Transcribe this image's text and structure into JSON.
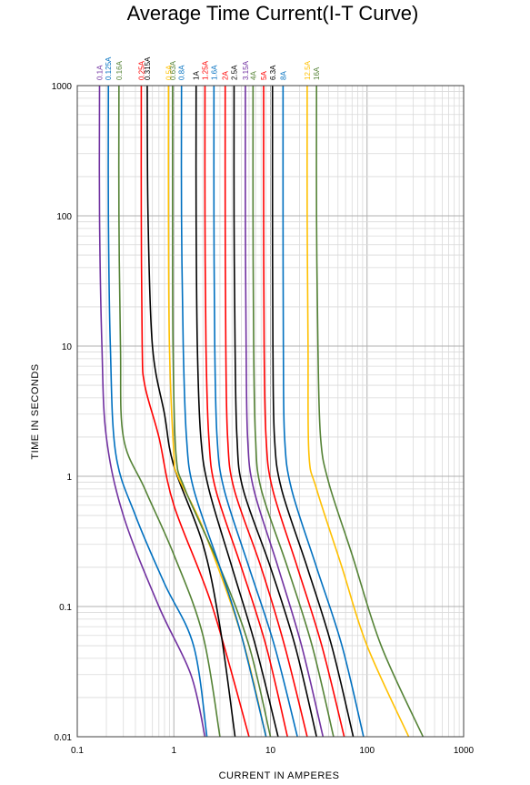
{
  "chart_data": {
    "type": "line",
    "title": "Average Time Current(I-T Curve)",
    "xlabel": "CURRENT IN AMPERES",
    "ylabel": "TIME IN SECONDS",
    "x_scale": "log",
    "y_scale": "log",
    "xlim": [
      0.1,
      1000
    ],
    "ylim": [
      0.01,
      1000
    ],
    "x_ticks": [
      "0.1",
      "1",
      "10",
      "100",
      "1000"
    ],
    "y_ticks": [
      "1000",
      "100",
      "10",
      "1",
      "0.1",
      "0.01"
    ],
    "grid": true,
    "legend": "series labels above plot, rotated",
    "series": [
      {
        "name": "0.1A",
        "color": "#7030a0",
        "points": [
          [
            0.17,
            1000
          ],
          [
            0.17,
            100
          ],
          [
            0.18,
            10
          ],
          [
            0.2,
            2
          ],
          [
            0.3,
            0.5
          ],
          [
            0.7,
            0.1
          ],
          [
            1.5,
            0.03
          ],
          [
            2.1,
            0.01
          ]
        ]
      },
      {
        "name": "0.125A",
        "color": "#0070c0",
        "points": [
          [
            0.21,
            1000
          ],
          [
            0.21,
            100
          ],
          [
            0.22,
            10
          ],
          [
            0.25,
            1.5
          ],
          [
            0.4,
            0.5
          ],
          [
            0.8,
            0.15
          ],
          [
            1.6,
            0.05
          ],
          [
            2.2,
            0.01
          ]
        ]
      },
      {
        "name": "0.16A",
        "color": "#548235",
        "points": [
          [
            0.27,
            1000
          ],
          [
            0.27,
            100
          ],
          [
            0.28,
            10
          ],
          [
            0.3,
            2
          ],
          [
            0.5,
            0.8
          ],
          [
            1,
            0.25
          ],
          [
            2,
            0.06
          ],
          [
            3,
            0.01
          ]
        ]
      },
      {
        "name": "0.25A",
        "color": "#ff0000",
        "points": [
          [
            0.46,
            1000
          ],
          [
            0.46,
            100
          ],
          [
            0.47,
            10
          ],
          [
            0.5,
            5
          ],
          [
            0.7,
            2
          ],
          [
            1,
            0.6
          ],
          [
            2.5,
            0.1
          ],
          [
            6,
            0.01
          ]
        ]
      },
      {
        "name": "0.315A",
        "color": "#000000",
        "points": [
          [
            0.53,
            1000
          ],
          [
            0.54,
            100
          ],
          [
            0.6,
            10
          ],
          [
            0.8,
            3
          ],
          [
            1,
            1.2
          ],
          [
            2,
            0.3
          ],
          [
            3,
            0.07
          ],
          [
            4.3,
            0.01
          ]
        ]
      },
      {
        "name": "0.5A",
        "color": "#ffc000",
        "points": [
          [
            0.88,
            1000
          ],
          [
            0.88,
            100
          ],
          [
            0.9,
            10
          ],
          [
            1,
            1.5
          ],
          [
            1.1,
            1
          ],
          [
            2,
            0.4
          ],
          [
            5,
            0.06
          ],
          [
            9,
            0.01
          ]
        ]
      },
      {
        "name": "0.63A",
        "color": "#548235",
        "points": [
          [
            0.97,
            1000
          ],
          [
            0.97,
            100
          ],
          [
            0.98,
            10
          ],
          [
            1.05,
            1.5
          ],
          [
            1.3,
            0.8
          ],
          [
            3,
            0.2
          ],
          [
            6,
            0.05
          ],
          [
            10,
            0.01
          ]
        ]
      },
      {
        "name": "0.8A",
        "color": "#0070c0",
        "points": [
          [
            1.2,
            1000
          ],
          [
            1.2,
            100
          ],
          [
            1.25,
            10
          ],
          [
            1.35,
            2
          ],
          [
            1.6,
            0.8
          ],
          [
            3,
            0.2
          ],
          [
            5,
            0.06
          ],
          [
            9,
            0.01
          ]
        ]
      },
      {
        "name": "1A",
        "color": "#000000",
        "points": [
          [
            1.7,
            1000
          ],
          [
            1.7,
            100
          ],
          [
            1.75,
            10
          ],
          [
            1.9,
            2
          ],
          [
            2.3,
            0.8
          ],
          [
            4,
            0.2
          ],
          [
            7,
            0.05
          ],
          [
            12,
            0.01
          ]
        ]
      },
      {
        "name": "1.25A",
        "color": "#ff0000",
        "points": [
          [
            2.1,
            1000
          ],
          [
            2.1,
            100
          ],
          [
            2.15,
            10
          ],
          [
            2.3,
            2
          ],
          [
            2.7,
            0.8
          ],
          [
            5,
            0.2
          ],
          [
            9,
            0.05
          ],
          [
            15,
            0.01
          ]
        ]
      },
      {
        "name": "1.6A",
        "color": "#0070c0",
        "points": [
          [
            2.6,
            1000
          ],
          [
            2.6,
            100
          ],
          [
            2.65,
            10
          ],
          [
            2.8,
            2
          ],
          [
            3.3,
            0.8
          ],
          [
            6,
            0.2
          ],
          [
            11,
            0.05
          ],
          [
            19,
            0.01
          ]
        ]
      },
      {
        "name": "2A",
        "color": "#ff0000",
        "points": [
          [
            3.4,
            1000
          ],
          [
            3.4,
            100
          ],
          [
            3.45,
            10
          ],
          [
            3.6,
            2
          ],
          [
            4.2,
            0.8
          ],
          [
            8,
            0.2
          ],
          [
            14,
            0.05
          ],
          [
            24,
            0.01
          ]
        ]
      },
      {
        "name": "2.5A",
        "color": "#000000",
        "points": [
          [
            4.2,
            1000
          ],
          [
            4.2,
            100
          ],
          [
            4.3,
            10
          ],
          [
            4.5,
            2
          ],
          [
            5.2,
            0.8
          ],
          [
            10,
            0.2
          ],
          [
            18,
            0.05
          ],
          [
            30,
            0.01
          ]
        ]
      },
      {
        "name": "3.15A",
        "color": "#7030a0",
        "points": [
          [
            5.5,
            1000
          ],
          [
            5.5,
            100
          ],
          [
            5.6,
            10
          ],
          [
            5.8,
            2
          ],
          [
            6.7,
            0.8
          ],
          [
            12,
            0.2
          ],
          [
            21,
            0.05
          ],
          [
            35,
            0.01
          ]
        ]
      },
      {
        "name": "4A",
        "color": "#548235",
        "points": [
          [
            6.6,
            1000
          ],
          [
            6.6,
            100
          ],
          [
            6.7,
            10
          ],
          [
            7,
            2
          ],
          [
            8,
            0.8
          ],
          [
            15,
            0.2
          ],
          [
            27,
            0.05
          ],
          [
            45,
            0.01
          ]
        ]
      },
      {
        "name": "5A",
        "color": "#ff0000",
        "points": [
          [
            8.5,
            1000
          ],
          [
            8.5,
            100
          ],
          [
            8.6,
            10
          ],
          [
            9,
            2
          ],
          [
            10.5,
            0.8
          ],
          [
            19,
            0.2
          ],
          [
            34,
            0.05
          ],
          [
            58,
            0.01
          ]
        ]
      },
      {
        "name": "6.3A",
        "color": "#000000",
        "points": [
          [
            10.5,
            1000
          ],
          [
            10.5,
            100
          ],
          [
            10.6,
            10
          ],
          [
            11,
            2
          ],
          [
            13,
            0.8
          ],
          [
            24,
            0.2
          ],
          [
            43,
            0.05
          ],
          [
            72,
            0.01
          ]
        ]
      },
      {
        "name": "8A",
        "color": "#0070c0",
        "points": [
          [
            13.5,
            1000
          ],
          [
            13.5,
            100
          ],
          [
            13.6,
            10
          ],
          [
            14,
            2
          ],
          [
            16.5,
            0.8
          ],
          [
            30,
            0.2
          ],
          [
            55,
            0.05
          ],
          [
            92,
            0.01
          ]
        ]
      },
      {
        "name": "12.5A",
        "color": "#ffc000",
        "points": [
          [
            24,
            1000
          ],
          [
            24,
            100
          ],
          [
            24.5,
            10
          ],
          [
            25,
            1.5
          ],
          [
            30,
            0.8
          ],
          [
            55,
            0.2
          ],
          [
            100,
            0.05
          ],
          [
            270,
            0.01
          ]
        ]
      },
      {
        "name": "16A",
        "color": "#548235",
        "points": [
          [
            30,
            1000
          ],
          [
            30,
            100
          ],
          [
            31,
            10
          ],
          [
            33,
            2
          ],
          [
            40,
            0.9
          ],
          [
            70,
            0.25
          ],
          [
            140,
            0.05
          ],
          [
            380,
            0.01
          ]
        ]
      }
    ]
  }
}
